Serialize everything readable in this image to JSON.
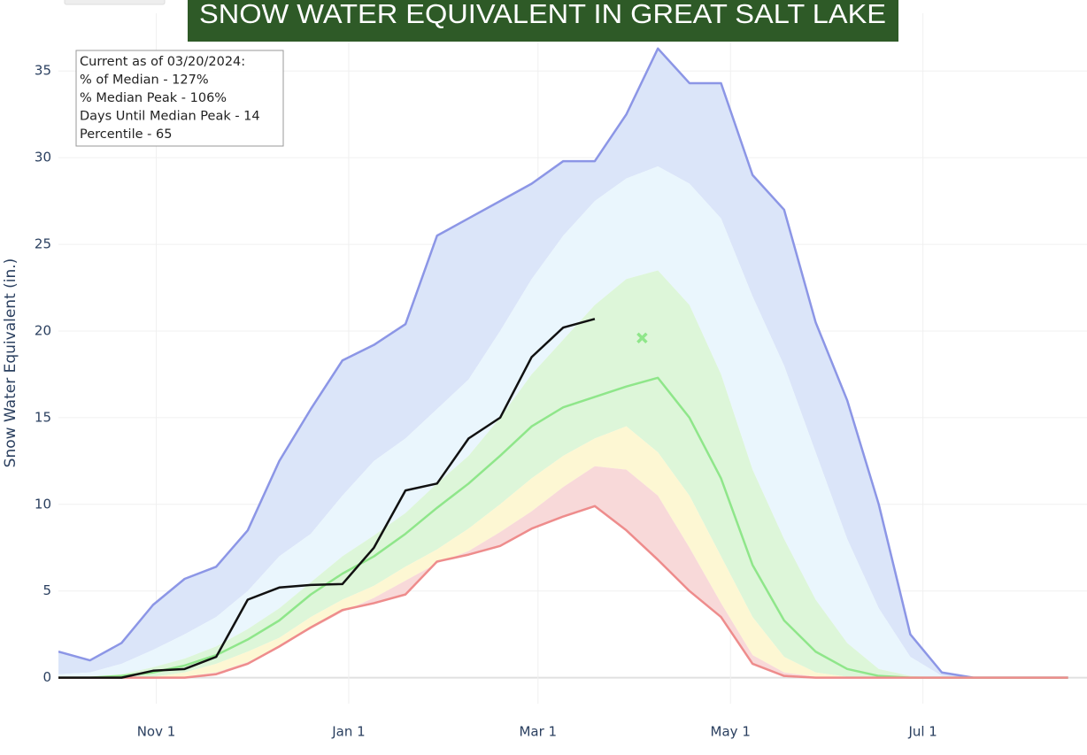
{
  "chart_data": {
    "type": "band-line",
    "title": "SNOW WATER EQUIVALENT IN GREAT SALT LAKE",
    "y_label": "Snow Water Equivalent (in.)",
    "annotation": [
      "Current as of 03/20/2024:",
      "% of Median - 127%",
      "% Median Peak - 106%",
      "Days Until Median Peak - 14",
      "Percentile - 65"
    ],
    "x": [
      0,
      10,
      20,
      30,
      40,
      50,
      60,
      70,
      80,
      90,
      100,
      110,
      120,
      130,
      140,
      150,
      160,
      170,
      180,
      190,
      200,
      210,
      220,
      230,
      240,
      250,
      260,
      270,
      280,
      290,
      300,
      310,
      320
    ],
    "xlim": [
      0,
      326
    ],
    "xticks": [
      {
        "value": 31,
        "label": "Nov 1"
      },
      {
        "value": 92,
        "label": "Jan 1"
      },
      {
        "value": 152,
        "label": "Mar 1"
      },
      {
        "value": 213,
        "label": "May 1"
      },
      {
        "value": 274,
        "label": "Jul 1"
      }
    ],
    "ylim": [
      -1.5,
      36.8
    ],
    "yticks": [
      0,
      5,
      10,
      15,
      20,
      25,
      30,
      35
    ],
    "grid": true,
    "series": [
      {
        "color": "#8c96e6",
        "fill": "#dbe5f9",
        "values": [
          1.5,
          1.0,
          2.0,
          4.2,
          5.7,
          6.4,
          8.5,
          12.5,
          15.5,
          18.3,
          19.2,
          20.4,
          25.5,
          26.5,
          27.5,
          28.5,
          29.8,
          29.8,
          32.5,
          36.3,
          34.3,
          34.3,
          29,
          27,
          20.5,
          16,
          10,
          2.5,
          0.3,
          0,
          0,
          0,
          0
        ]
      },
      {
        "fill": "#eaf6fd",
        "values": [
          0.2,
          0.3,
          0.8,
          1.6,
          2.5,
          3.5,
          5,
          7,
          8.3,
          10.5,
          12.5,
          13.8,
          15.5,
          17.2,
          20,
          23,
          25.5,
          27.5,
          28.8,
          29.5,
          28.5,
          26.5,
          22,
          18,
          13,
          8,
          4,
          1.2,
          0.1,
          0,
          0,
          0,
          0
        ]
      },
      {
        "fill": "#ddf6d9",
        "values": [
          0,
          0.05,
          0.2,
          0.6,
          1.1,
          1.8,
          2.8,
          4,
          5.5,
          7,
          8.2,
          9.5,
          11.2,
          12.8,
          15,
          17.5,
          19.5,
          21.5,
          23,
          23.5,
          21.5,
          17.5,
          12,
          8,
          4.5,
          2,
          0.5,
          0.1,
          0,
          0,
          0,
          0,
          0
        ]
      },
      {
        "color": "#8fe68a",
        "fill": "#ddf6d9",
        "values": [
          0,
          0,
          0.1,
          0.3,
          0.7,
          1.3,
          2.2,
          3.3,
          4.8,
          6,
          7,
          8.3,
          9.8,
          11.2,
          12.8,
          14.5,
          15.6,
          16.2,
          16.8,
          17.3,
          15,
          11.5,
          6.5,
          3.3,
          1.5,
          0.5,
          0.1,
          0,
          0,
          0,
          0,
          0,
          0
        ]
      },
      {
        "fill": "#fdf7d3",
        "values": [
          0,
          0,
          0,
          0.05,
          0.3,
          0.8,
          1.5,
          2.3,
          3.5,
          4.5,
          5.3,
          6.4,
          7.4,
          8.6,
          10,
          11.5,
          12.8,
          13.8,
          14.5,
          13,
          10.5,
          7,
          3.5,
          1.2,
          0.3,
          0.05,
          0,
          0,
          0,
          0,
          0,
          0,
          0
        ]
      },
      {
        "fill": "#f8d9d9",
        "values": [
          0,
          0,
          0,
          0,
          0.05,
          0.3,
          0.9,
          1.8,
          2.8,
          3.8,
          4.6,
          5.6,
          6.6,
          7.3,
          8.4,
          9.6,
          11,
          12.2,
          12,
          10.5,
          7.5,
          4.3,
          1.3,
          0.3,
          0.05,
          0,
          0,
          0,
          0,
          0,
          0,
          0,
          0
        ]
      },
      {
        "color": "#ee8c8c",
        "values": [
          0,
          0,
          0,
          0,
          0,
          0.2,
          0.8,
          1.8,
          2.9,
          3.9,
          4.3,
          4.8,
          6.7,
          7.1,
          7.6,
          8.6,
          9.3,
          9.9,
          8.5,
          6.8,
          5,
          3.5,
          0.8,
          0.1,
          0,
          0,
          0,
          0,
          0,
          0,
          0,
          0,
          0
        ]
      },
      {
        "color": "#111111",
        "values": [
          0,
          0,
          0,
          0.4,
          0.5,
          1.2,
          4.5,
          5.2,
          5.35,
          5.4,
          7.5,
          10.8,
          11.2,
          13.8,
          15,
          18.5,
          20.2,
          20.7,
          null,
          null,
          null,
          null,
          null,
          null,
          null,
          null,
          null,
          null,
          null,
          null,
          null,
          null,
          null
        ]
      }
    ],
    "peak_marker": {
      "x": 185,
      "y": 19.6,
      "color": "#8fe68a"
    }
  }
}
